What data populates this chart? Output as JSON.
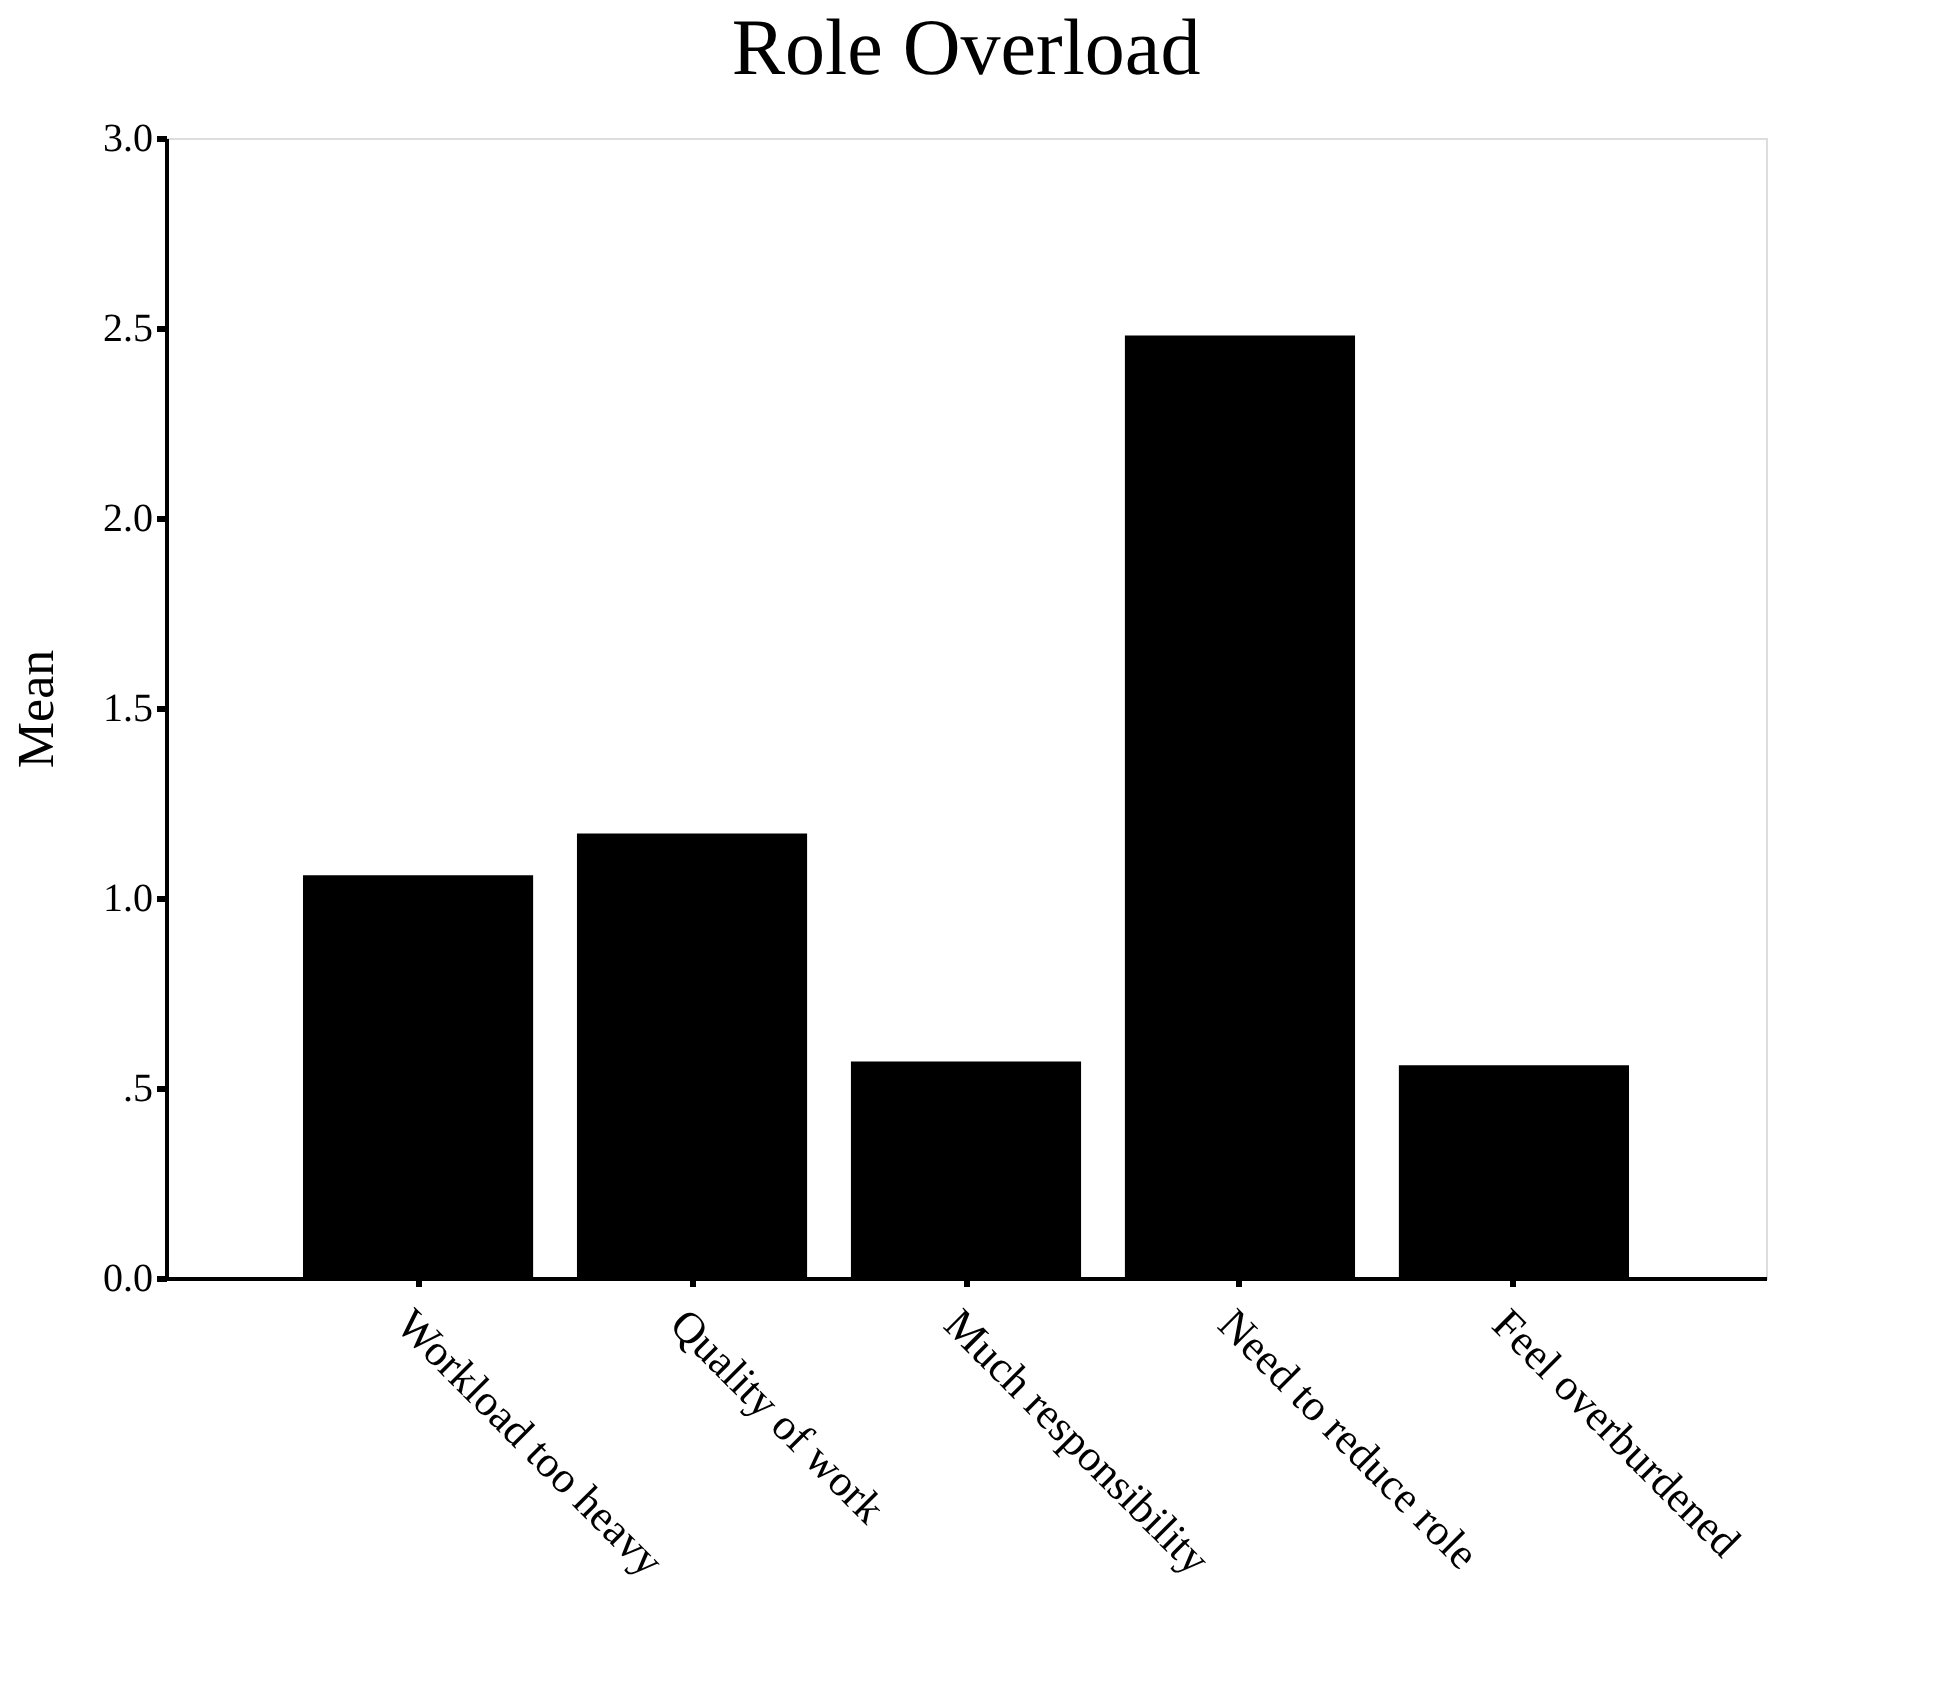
{
  "chart_data": {
    "type": "bar",
    "title": "Role Overload",
    "ylabel": "Mean",
    "categories": [
      "Workload too heavy",
      "Quality of work",
      "Much responsibility",
      "Need to reduce role",
      "Feel overburdened"
    ],
    "values": [
      1.06,
      1.17,
      0.57,
      2.48,
      0.56
    ],
    "color": "#000000",
    "ylim": [
      0,
      3
    ],
    "yticks": [
      {
        "value": 0,
        "label": "0.0"
      },
      {
        "value": 0.5,
        "label": ".5"
      },
      {
        "value": 1,
        "label": "1.0"
      },
      {
        "value": 1.5,
        "label": "1.5"
      },
      {
        "value": 2,
        "label": "2.0"
      },
      {
        "value": 2.5,
        "label": "2.5"
      },
      {
        "value": 3,
        "label": "3.0"
      }
    ],
    "grid": false
  }
}
